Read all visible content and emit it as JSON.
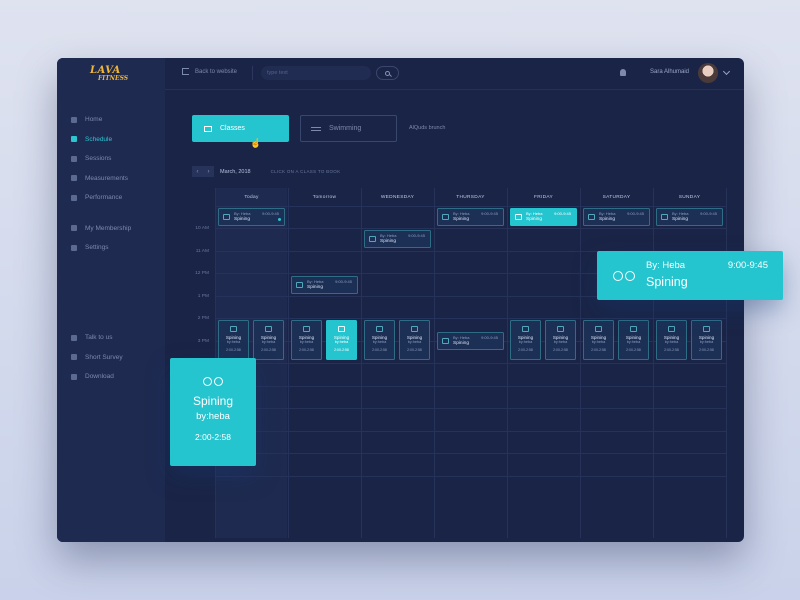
{
  "app": {
    "logo_line1": "LAVA",
    "logo_line2": "FITNESS",
    "accent": "#25c5d0",
    "background": "#1a2446"
  },
  "sidebar": {
    "items": [
      {
        "label": "Home",
        "icon": "home-icon",
        "active": false
      },
      {
        "label": "Schedule",
        "icon": "calendar-icon",
        "active": true
      },
      {
        "label": "Sessions",
        "icon": "grid-icon",
        "active": false
      },
      {
        "label": "Measurements",
        "icon": "scale-icon",
        "active": false
      },
      {
        "label": "Performance",
        "icon": "gauge-icon",
        "active": false
      }
    ],
    "items2": [
      {
        "label": "My Membership",
        "icon": "card-icon"
      },
      {
        "label": "Settings",
        "icon": "gear-icon"
      }
    ],
    "bottom": [
      {
        "label": "Talk to us",
        "icon": "phone-icon"
      },
      {
        "label": "Short Survey",
        "icon": "clipboard-icon"
      },
      {
        "label": "Download",
        "icon": "mobile-icon"
      }
    ]
  },
  "topbar": {
    "back_label": "Back to website",
    "search_placeholder": "type text",
    "user_name": "Sara Alhumaid"
  },
  "tabs": {
    "classes": "Classes",
    "swimming": "Swimming",
    "branch": "AlQuds brunch"
  },
  "calendar": {
    "month": "March, 2018",
    "hint": "CLICK ON A CLASS TO BOOK",
    "days": [
      "Today",
      "Tomorrow",
      "WEDNESDAY",
      "THURSDAY",
      "FRIDAY",
      "SATURDAY",
      "SUNDAY"
    ],
    "times": [
      "10 AM",
      "11 AM",
      "12 PM",
      "1 PM",
      "2 PM",
      "3 PM",
      "4 PM",
      "5 PM",
      "6 PM",
      "7 PM",
      "8 PM"
    ],
    "event": {
      "by": "By: Heba",
      "time": "9:00-9:45",
      "name": "Spining"
    },
    "card": {
      "name": "Spining",
      "by": "by:heba",
      "time": "2:00-2:58"
    }
  },
  "popup_left": {
    "name": "Spining",
    "by": "by:heba",
    "time": "2:00-2:58"
  },
  "popup_right": {
    "by": "By: Heba",
    "time": "9:00-9:45",
    "name": "Spining"
  }
}
